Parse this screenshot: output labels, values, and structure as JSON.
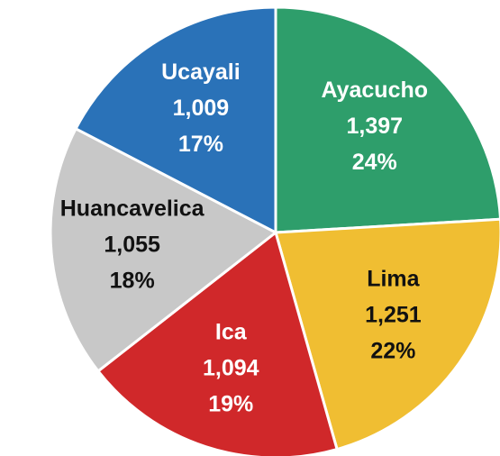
{
  "chart_data": {
    "type": "pie",
    "categories": [
      "Ayacucho",
      "Lima",
      "Ica",
      "Huancavelica",
      "Ucayali"
    ],
    "values": [
      1397,
      1251,
      1094,
      1055,
      1009
    ],
    "value_labels": [
      "1,397",
      "1,251",
      "1,094",
      "1,055",
      "1,009"
    ],
    "percent_labels": [
      "24%",
      "22%",
      "19%",
      "18%",
      "17%"
    ],
    "colors": [
      "#2e9e6b",
      "#f0be32",
      "#d0282a",
      "#c8c8c8",
      "#2a72b8"
    ],
    "label_colors": [
      "#ffffff",
      "#111111",
      "#ffffff",
      "#111111",
      "#ffffff"
    ]
  }
}
